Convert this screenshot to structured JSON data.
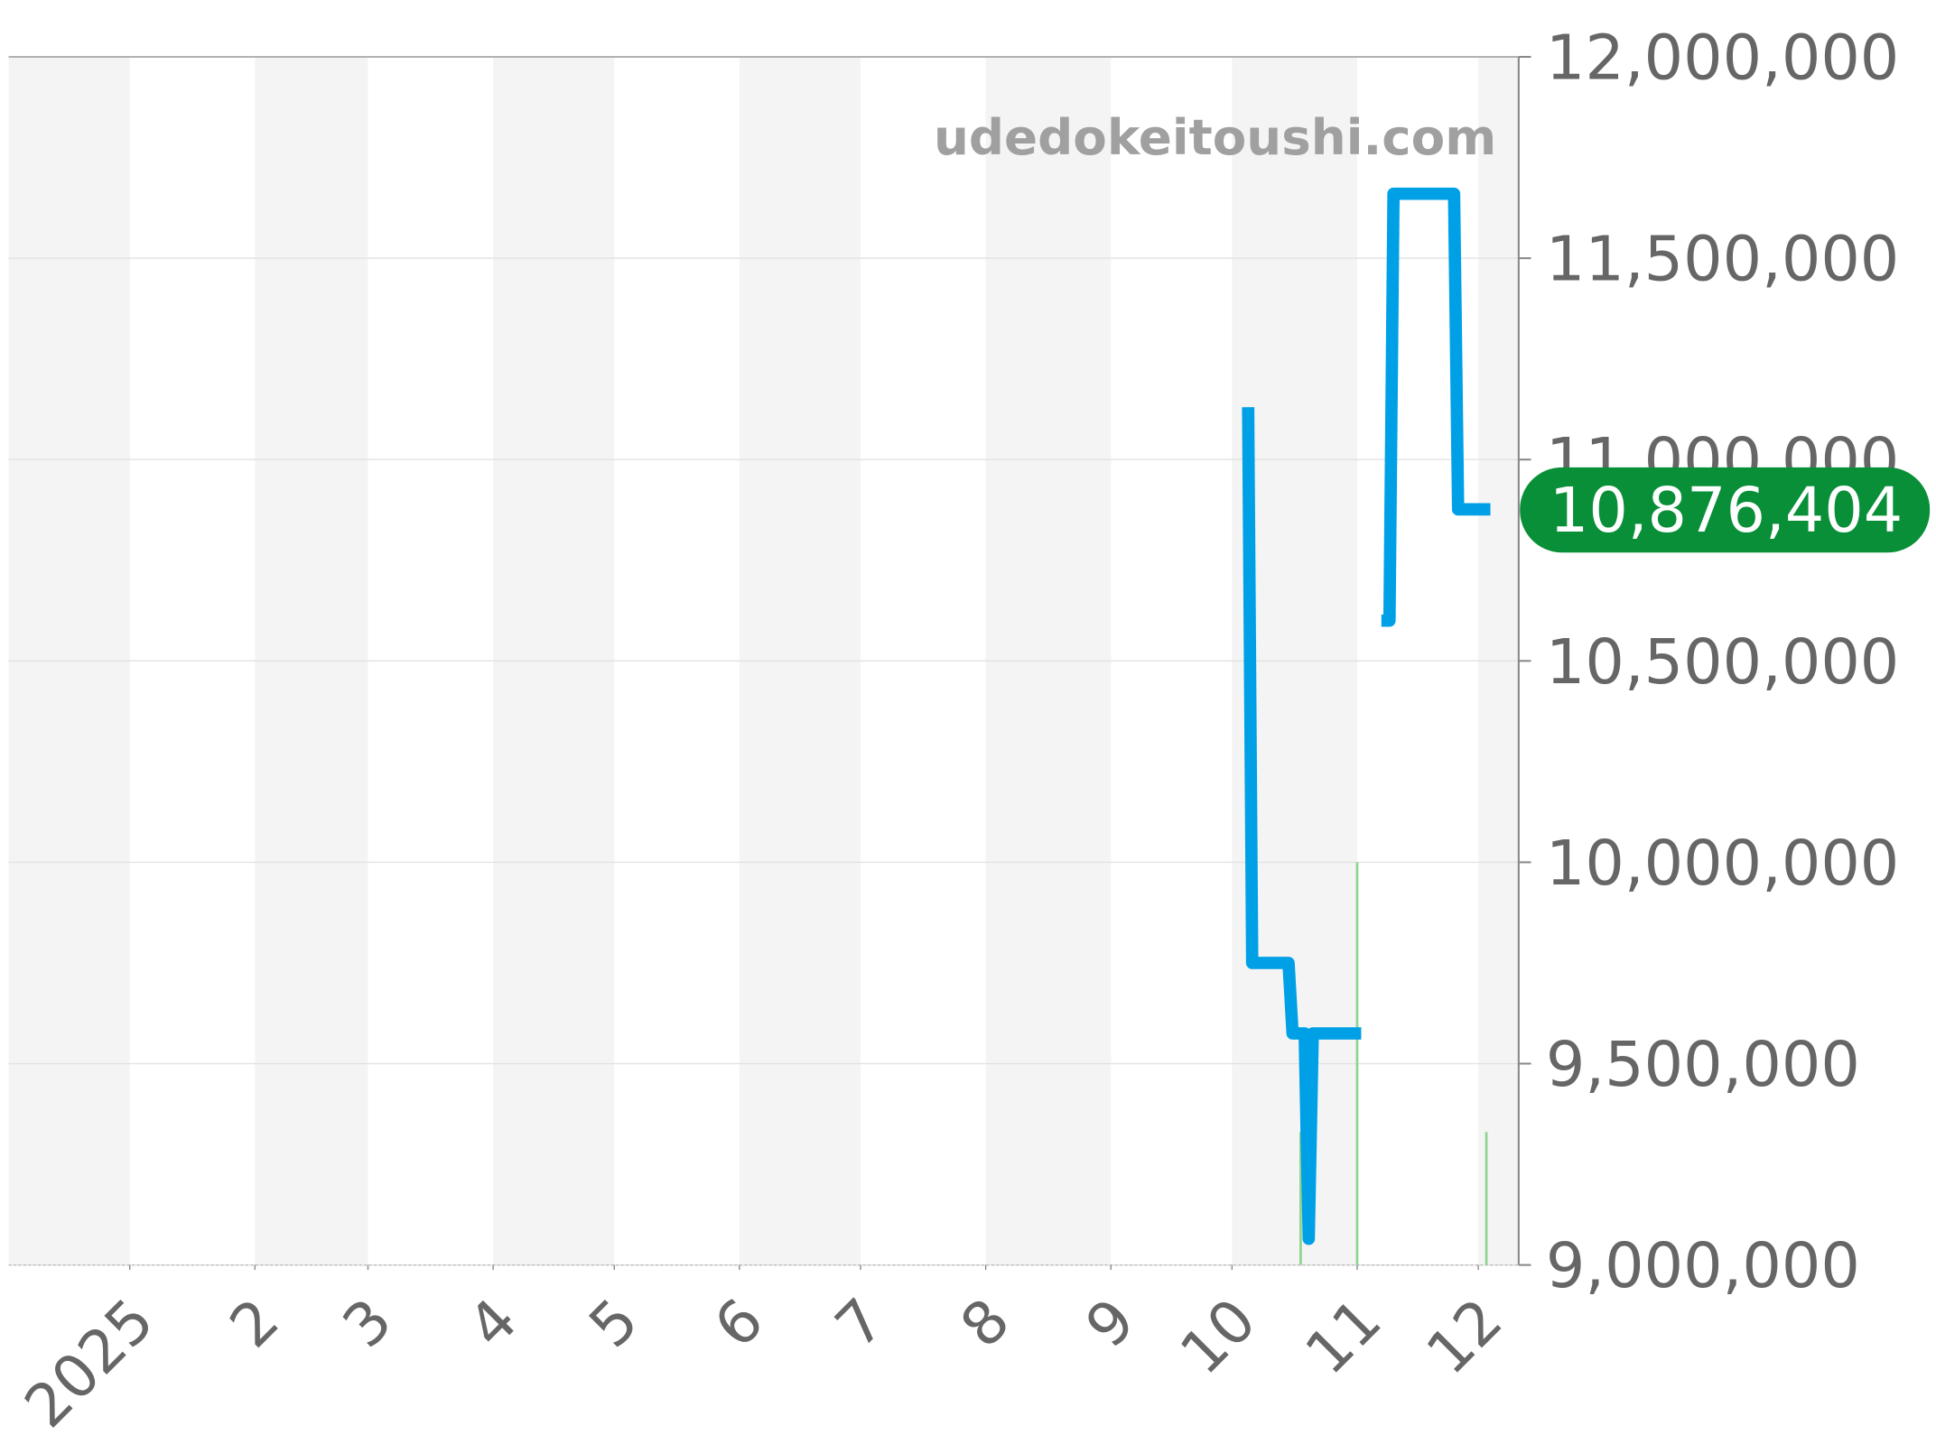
{
  "chart_data": {
    "type": "line",
    "title": "",
    "xlabel": "",
    "ylabel": "",
    "watermark": "udedokeitoushi.com",
    "xlim": [
      "2024-12-02",
      "2025-12-11"
    ],
    "ylim": [
      9000000,
      12000000
    ],
    "grid": true,
    "x_ticks": [
      {
        "date": "2025-01-01",
        "label": "2025"
      },
      {
        "date": "2025-02-01",
        "label": "2"
      },
      {
        "date": "2025-03-01",
        "label": "3"
      },
      {
        "date": "2025-04-01",
        "label": "4"
      },
      {
        "date": "2025-05-01",
        "label": "5"
      },
      {
        "date": "2025-06-01",
        "label": "6"
      },
      {
        "date": "2025-07-01",
        "label": "7"
      },
      {
        "date": "2025-08-01",
        "label": "8"
      },
      {
        "date": "2025-09-01",
        "label": "9"
      },
      {
        "date": "2025-10-01",
        "label": "10"
      },
      {
        "date": "2025-11-01",
        "label": "11"
      },
      {
        "date": "2025-12-01",
        "label": "12"
      }
    ],
    "y_ticks": [
      {
        "value": 12000000,
        "label": "12,000,000"
      },
      {
        "value": 11500000,
        "label": "11,500,000"
      },
      {
        "value": 11000000,
        "label": "11,000,000"
      },
      {
        "value": 10500000,
        "label": "10,500,000"
      },
      {
        "value": 10000000,
        "label": "10,000,000"
      },
      {
        "value": 9500000,
        "label": "9,500,000"
      },
      {
        "value": 9000000,
        "label": "9,000,000"
      }
    ],
    "series": [
      {
        "color": "#00a0e6",
        "segments": [
          [
            {
              "x": "2025-10-05",
              "y": 11130000
            },
            {
              "x": "2025-10-06",
              "y": 9750000
            },
            {
              "x": "2025-10-15",
              "y": 9750000
            },
            {
              "x": "2025-10-16",
              "y": 9575000
            },
            {
              "x": "2025-10-19",
              "y": 9575000
            },
            {
              "x": "2025-10-20",
              "y": 9065000
            },
            {
              "x": "2025-10-21",
              "y": 9575000
            },
            {
              "x": "2025-11-02",
              "y": 9575000
            }
          ],
          [
            {
              "x": "2025-11-07",
              "y": 10600000
            },
            {
              "x": "2025-11-09",
              "y": 10600000
            },
            {
              "x": "2025-11-10",
              "y": 11660000
            },
            {
              "x": "2025-11-25",
              "y": 11660000
            },
            {
              "x": "2025-11-26",
              "y": 10876404
            },
            {
              "x": "2025-12-04",
              "y": 10876404
            }
          ]
        ]
      }
    ],
    "markers": {
      "color": "#8fd48f",
      "items": [
        {
          "x": "2025-10-18",
          "y": 9330000
        },
        {
          "x": "2025-11-01",
          "y": 10000000
        },
        {
          "x": "2025-12-03",
          "y": 9330000
        }
      ]
    },
    "last_value": {
      "value": 10876404,
      "label": "10,876,404",
      "color": "#088f37"
    },
    "band_color": "#f4f4f4"
  }
}
